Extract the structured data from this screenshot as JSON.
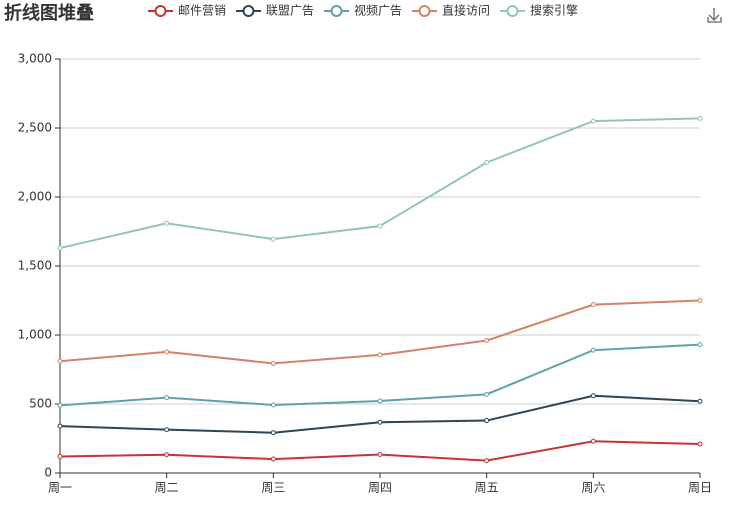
{
  "chart_data": {
    "type": "line",
    "stacked": true,
    "title": "折线图堆叠",
    "categories": [
      "周一",
      "周二",
      "周三",
      "周四",
      "周五",
      "周六",
      "周日"
    ],
    "series": [
      {
        "name": "邮件营销",
        "color": "#c23531",
        "values": [
          120,
          132,
          101,
          134,
          90,
          230,
          210
        ]
      },
      {
        "name": "联盟广告",
        "color": "#2f4554",
        "values": [
          220,
          182,
          191,
          234,
          290,
          330,
          310
        ]
      },
      {
        "name": "视频广告",
        "color": "#61a0a8",
        "values": [
          150,
          232,
          201,
          154,
          190,
          330,
          410
        ]
      },
      {
        "name": "直接访问",
        "color": "#d48265",
        "values": [
          320,
          332,
          301,
          334,
          390,
          330,
          320
        ]
      },
      {
        "name": "搜索引擎",
        "color": "#91c7ae",
        "values": [
          820,
          932,
          901,
          934,
          1290,
          1330,
          1320
        ]
      }
    ],
    "ylim": [
      0,
      3000
    ],
    "yticks": [
      0,
      500,
      {
        "value": 1000,
        "label": "1,000"
      },
      {
        "value": 1500,
        "label": "1,500"
      },
      {
        "value": 2000,
        "label": "2,000"
      },
      {
        "value": 2500,
        "label": "2,500"
      },
      {
        "value": 3000,
        "label": "3,000"
      }
    ],
    "grid": true
  }
}
